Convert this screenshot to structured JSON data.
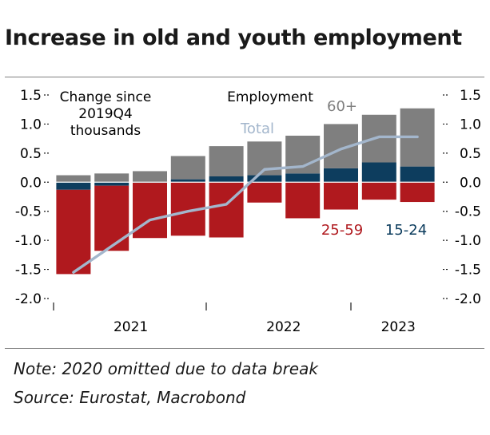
{
  "title": "Increase in old and youth employment",
  "note": "Note: 2020 omitted due to data break",
  "source": "Source: Eurostat, Macrobond",
  "chart_data": {
    "type": "bar",
    "stacked": true,
    "left_axis_label": [
      "Change since",
      "2019Q4",
      "thousands"
    ],
    "right_axis_label": "Employment",
    "ylim": [
      -2.0,
      1.5
    ],
    "yticks": [
      1.5,
      1.0,
      0.5,
      0.0,
      -0.5,
      -1.0,
      -1.5,
      -2.0
    ],
    "ytick_labels": [
      "1.5",
      "1.0",
      "0.5",
      "0.0",
      "-0.5",
      "-1.0",
      "-1.5",
      "-2.0"
    ],
    "year_labels": [
      {
        "label": "2021",
        "bar_index_center": 1.5
      },
      {
        "label": "2022",
        "bar_index_center": 5.5
      },
      {
        "label": "2023",
        "bar_index_center": 8.5
      }
    ],
    "periods": [
      "2021Q1",
      "2021Q2",
      "2021Q3",
      "2021Q4",
      "2022Q1",
      "2022Q2",
      "2022Q3",
      "2022Q4",
      "2023Q1",
      "2023Q2"
    ],
    "series": [
      {
        "name": "15-24",
        "color": "#0d3d5e",
        "values": [
          -0.13,
          -0.06,
          -0.01,
          0.05,
          0.1,
          0.12,
          0.15,
          0.24,
          0.34,
          0.27
        ]
      },
      {
        "name": "25-59",
        "color": "#b0191e",
        "values": [
          -1.45,
          -1.12,
          -0.95,
          -0.92,
          -0.95,
          -0.35,
          -0.62,
          -0.47,
          -0.3,
          -0.34
        ]
      },
      {
        "name": "60+",
        "color": "#7f7f7f",
        "values": [
          0.12,
          0.15,
          0.19,
          0.4,
          0.52,
          0.58,
          0.65,
          0.76,
          0.82,
          1.0
        ]
      }
    ],
    "total": {
      "name": "Total",
      "color": "#a3b6cc",
      "values": [
        -1.55,
        -1.1,
        -0.65,
        -0.5,
        -0.38,
        0.22,
        0.27,
        0.57,
        0.78,
        0.78
      ]
    }
  }
}
